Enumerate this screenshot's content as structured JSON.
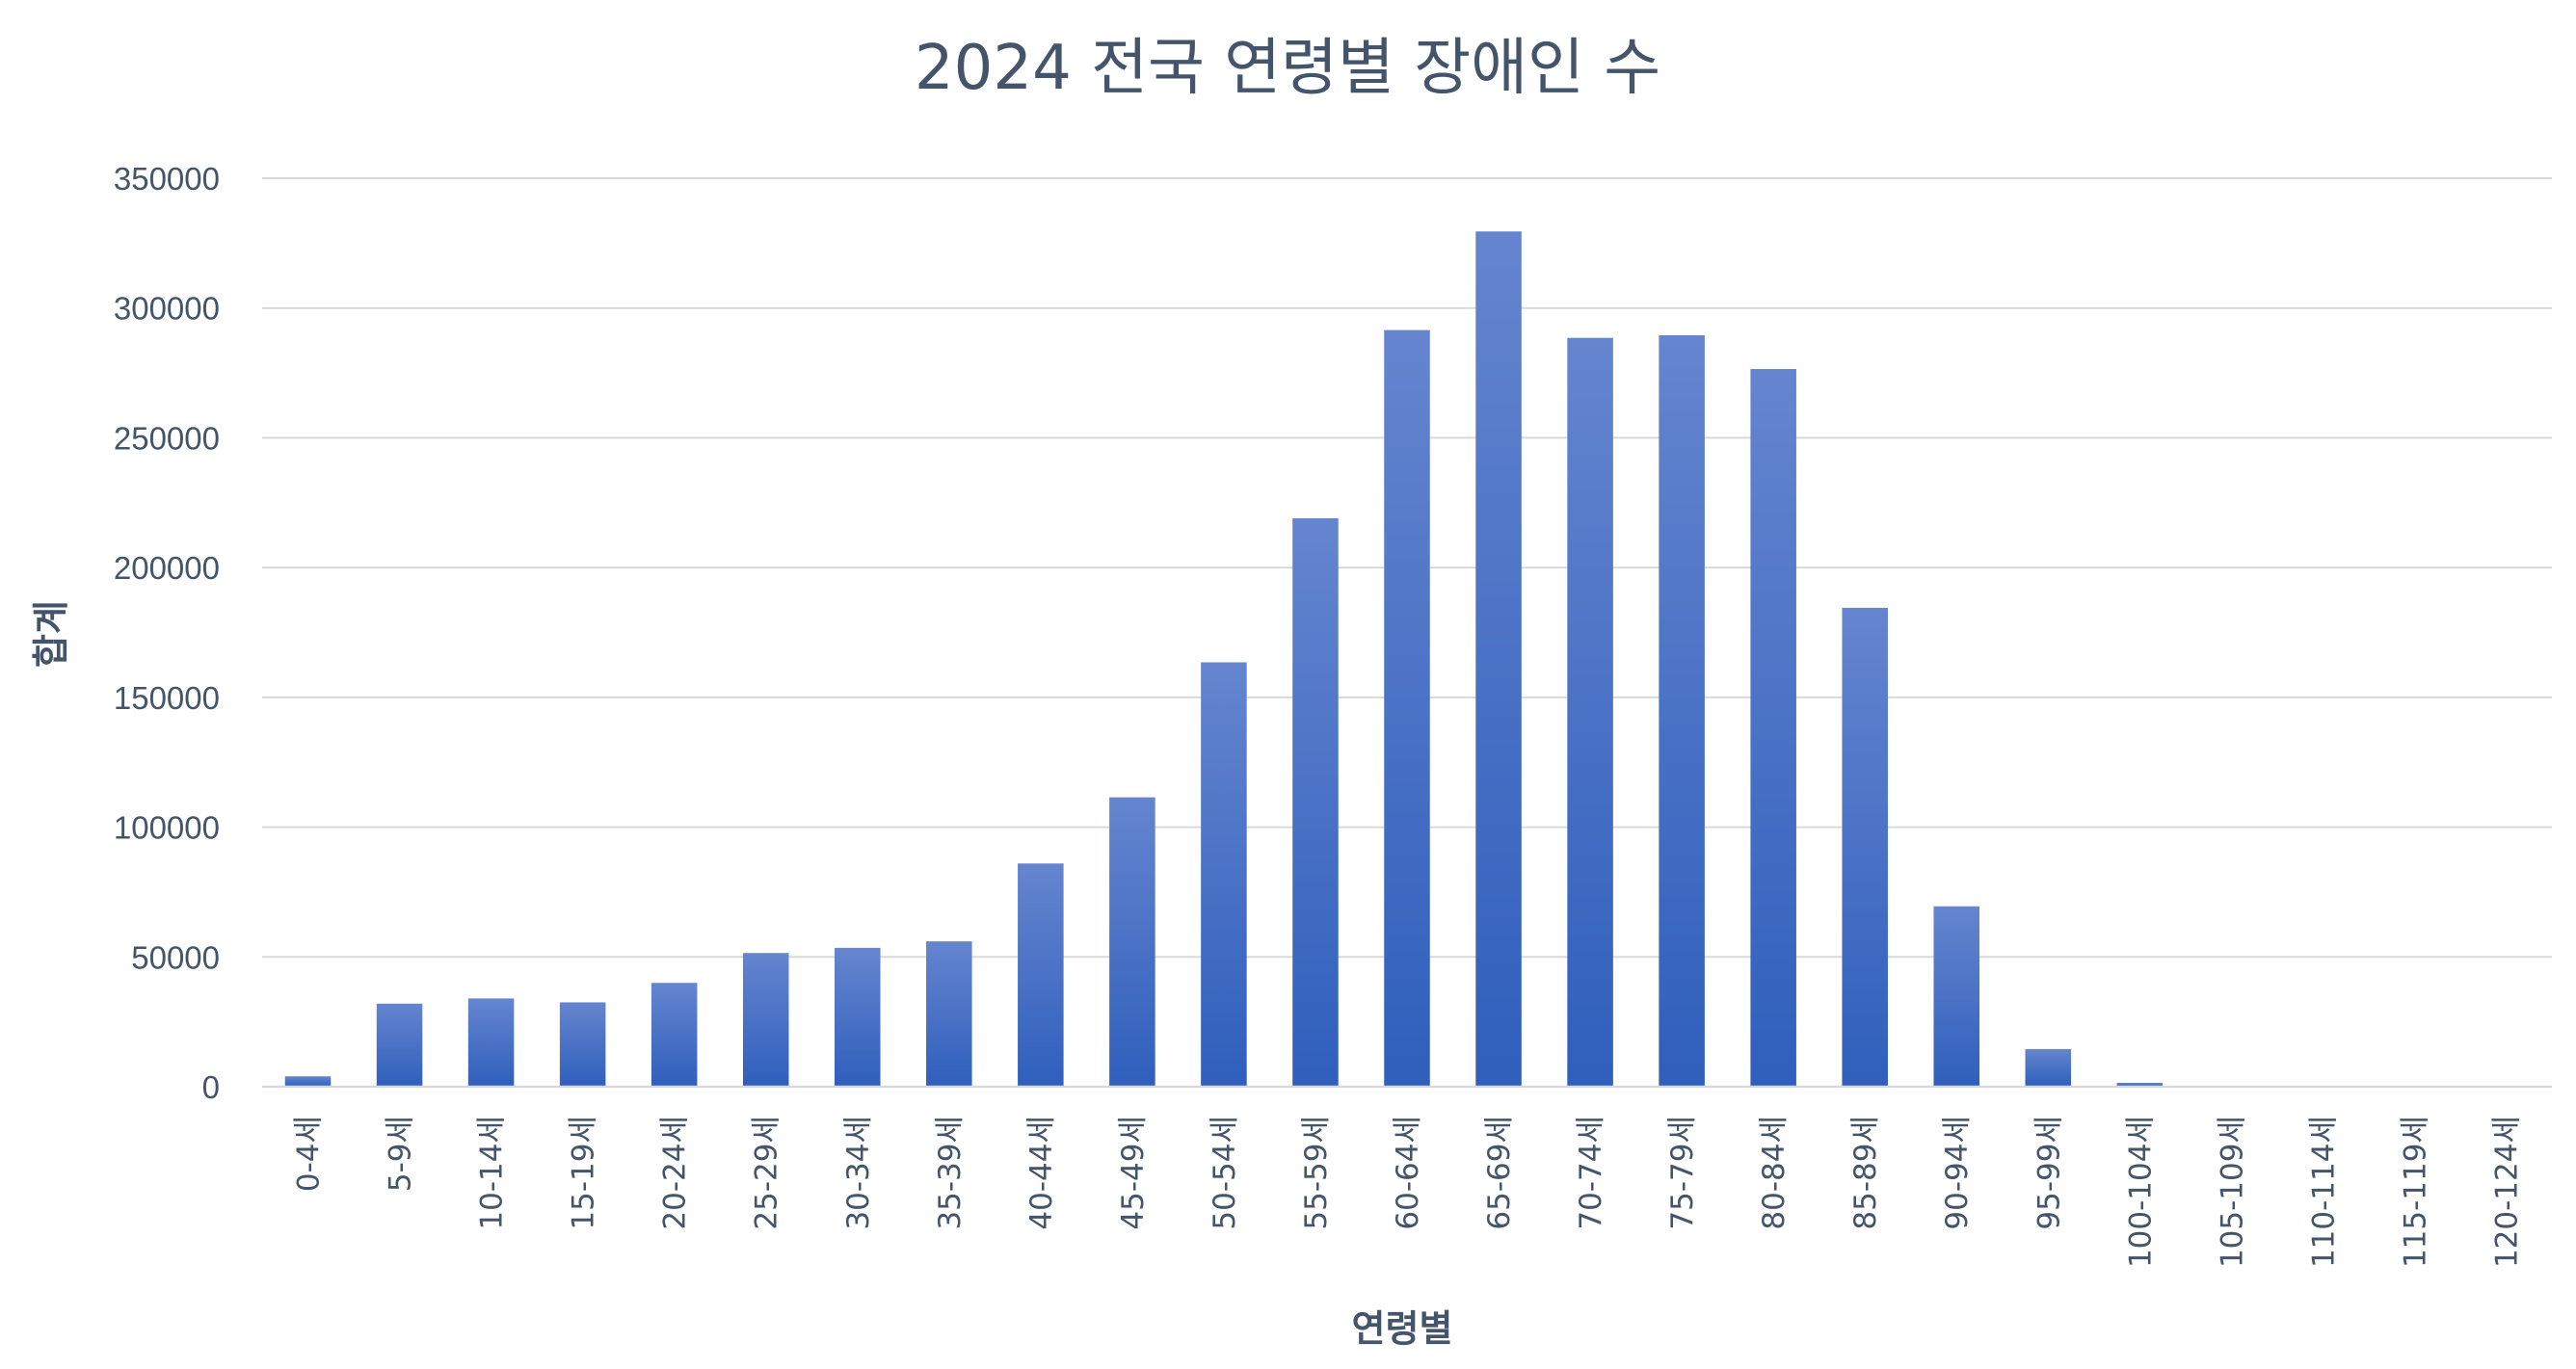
{
  "chart_data": {
    "type": "bar",
    "title": "2024 전국 연령별 장애인 수",
    "xlabel": "연령별",
    "ylabel": "합계",
    "categories": [
      "0-4세",
      "5-9세",
      "10-14세",
      "15-19세",
      "20-24세",
      "25-29세",
      "30-34세",
      "35-39세",
      "40-44세",
      "45-49세",
      "50-54세",
      "55-59세",
      "60-64세",
      "65-69세",
      "70-74세",
      "75-79세",
      "80-84세",
      "85-89세",
      "90-94세",
      "95-99세",
      "100-104세",
      "105-109세",
      "110-114세",
      "115-119세",
      "120-124세"
    ],
    "values": [
      4000,
      32000,
      34000,
      32500,
      40000,
      51500,
      53500,
      56000,
      86000,
      111500,
      163500,
      219000,
      291500,
      329500,
      288500,
      289500,
      276500,
      184500,
      69500,
      14500,
      1500,
      0,
      0,
      0,
      0
    ],
    "ylim": [
      0,
      350000
    ],
    "yticks": [
      0,
      50000,
      100000,
      150000,
      200000,
      250000,
      300000,
      350000
    ],
    "grid": true,
    "legend": "none",
    "colors": {
      "bar_top": "#6585cf",
      "bar_bottom": "#2f5fbc",
      "text": "#44546a",
      "grid": "#d9d9d9"
    }
  }
}
